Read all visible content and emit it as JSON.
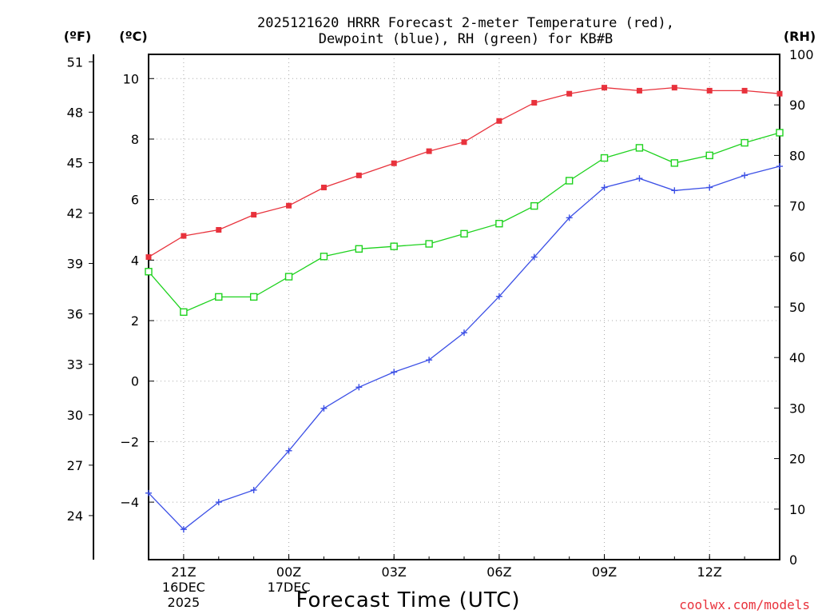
{
  "chart_data": {
    "type": "line",
    "title_line1": "2025121620 HRRR Forecast 2-meter Temperature (red),",
    "title_line2": "Dewpoint (blue), RH (green) for KB#B",
    "xlabel": "Forecast Time (UTC)",
    "credit": "coolwx.com/models",
    "unit_f": "(ºF)",
    "unit_c": "(ºC)",
    "unit_rh": "(RH)",
    "hours": [
      20,
      21,
      22,
      23,
      24,
      25,
      26,
      27,
      28,
      29,
      30,
      31,
      32,
      33,
      34,
      35,
      36,
      37,
      38
    ],
    "x_ticks": [
      {
        "hour": 21,
        "lines": [
          "21Z",
          "16DEC",
          "2025"
        ]
      },
      {
        "hour": 24,
        "lines": [
          "00Z",
          "17DEC"
        ]
      },
      {
        "hour": 27,
        "lines": [
          "03Z"
        ]
      },
      {
        "hour": 30,
        "lines": [
          "06Z"
        ]
      },
      {
        "hour": 33,
        "lines": [
          "09Z"
        ]
      },
      {
        "hour": 36,
        "lines": [
          "12Z"
        ]
      }
    ],
    "xlim": [
      20,
      38
    ],
    "ylim_c": [
      -5.9,
      10.8
    ],
    "ylim_rh": [
      0,
      100
    ],
    "c_ticks": [
      -4,
      -2,
      0,
      2,
      4,
      6,
      8,
      10
    ],
    "f_ticks": [
      24,
      27,
      30,
      33,
      36,
      39,
      42,
      45,
      48,
      51
    ],
    "rh_ticks": [
      0,
      10,
      20,
      30,
      40,
      50,
      60,
      70,
      80,
      90,
      100
    ],
    "series": [
      {
        "name": "Temperature",
        "color": "#e8323c",
        "marker": "filled-square",
        "values": [
          4.1,
          4.8,
          5.0,
          5.5,
          5.8,
          6.4,
          6.8,
          7.2,
          7.6,
          7.9,
          8.6,
          9.2,
          9.5,
          9.7,
          9.6,
          9.7,
          9.6,
          9.6,
          9.5
        ]
      },
      {
        "name": "Dewpoint",
        "color": "#3c50e6",
        "marker": "plus",
        "values": [
          -3.7,
          -4.9,
          -4.0,
          -3.6,
          -2.3,
          -0.9,
          -0.2,
          0.3,
          0.7,
          1.6,
          2.8,
          4.1,
          5.4,
          6.4,
          6.7,
          6.3,
          6.4,
          6.8,
          7.1
        ]
      },
      {
        "name": "RH",
        "color": "#1ed21e",
        "marker": "open-square",
        "axis": "rh",
        "values": [
          57,
          49,
          52,
          52,
          56,
          60,
          61.5,
          62,
          62.5,
          64.5,
          66.5,
          70,
          75,
          79.5,
          81.5,
          78.5,
          80,
          82.5,
          84.5
        ]
      }
    ]
  }
}
